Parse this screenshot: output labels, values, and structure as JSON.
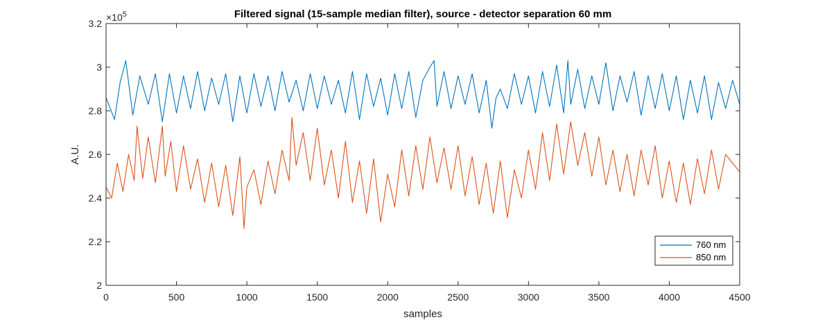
{
  "chart_data": {
    "type": "line",
    "title": "Filtered signal (15-sample median filter), source - detector separation 60 mm",
    "xlabel": "samples",
    "ylabel": "A.U.",
    "xlim": [
      0,
      4500
    ],
    "ylim": [
      200000,
      320000
    ],
    "x_ticks": [
      "0",
      "500",
      "1000",
      "1500",
      "2000",
      "2500",
      "3000",
      "3500",
      "4000",
      "4500"
    ],
    "y_ticks": [
      "2",
      "2.2",
      "2.4",
      "2.6",
      "2.8",
      "3",
      "3.2"
    ],
    "y_exponent": {
      "base": "×10",
      "power": "5"
    },
    "grid": false,
    "legend_position": "bottom-right",
    "series": [
      {
        "name": "760 nm",
        "color": "#0072BD",
        "x": [
          0,
          60,
          100,
          140,
          190,
          240,
          300,
          350,
          400,
          450,
          500,
          550,
          600,
          650,
          700,
          750,
          800,
          850,
          900,
          950,
          1000,
          1050,
          1100,
          1150,
          1200,
          1250,
          1300,
          1350,
          1400,
          1450,
          1500,
          1550,
          1600,
          1650,
          1700,
          1750,
          1800,
          1850,
          1900,
          1950,
          2000,
          2050,
          2100,
          2150,
          2200,
          2250,
          2300,
          2330,
          2350,
          2400,
          2450,
          2500,
          2550,
          2600,
          2650,
          2700,
          2740,
          2770,
          2800,
          2850,
          2900,
          2950,
          3000,
          3050,
          3100,
          3150,
          3200,
          3250,
          3280,
          3300,
          3350,
          3400,
          3450,
          3500,
          3550,
          3600,
          3650,
          3700,
          3750,
          3800,
          3850,
          3900,
          3950,
          4000,
          4050,
          4100,
          4150,
          4200,
          4250,
          4300,
          4350,
          4400,
          4450,
          4500
        ],
        "values": [
          286000,
          276000,
          293000,
          303000,
          278000,
          296000,
          283000,
          297000,
          275000,
          297000,
          279000,
          296000,
          281000,
          298000,
          280000,
          295000,
          283000,
          297000,
          275000,
          296000,
          279000,
          297000,
          282000,
          296000,
          280000,
          298000,
          284000,
          294000,
          280000,
          297000,
          281000,
          296000,
          283000,
          294000,
          279000,
          298000,
          276000,
          297000,
          282000,
          295000,
          278000,
          297000,
          281000,
          298000,
          277000,
          294000,
          300000,
          303000,
          282000,
          298000,
          281000,
          296000,
          283000,
          297000,
          279000,
          294000,
          272000,
          286000,
          290000,
          281000,
          297000,
          283000,
          296000,
          279000,
          298000,
          282000,
          301000,
          279000,
          303000,
          283000,
          299000,
          281000,
          296000,
          283000,
          302000,
          280000,
          296000,
          284000,
          298000,
          278000,
          296000,
          281000,
          297000,
          280000,
          296000,
          276000,
          294000,
          279000,
          296000,
          276000,
          293000,
          281000,
          294000,
          283000
        ]
      },
      {
        "name": "850 nm",
        "color": "#D95319",
        "x": [
          0,
          40,
          80,
          120,
          160,
          200,
          220,
          260,
          300,
          350,
          400,
          420,
          460,
          500,
          550,
          600,
          650,
          700,
          750,
          800,
          850,
          900,
          950,
          980,
          1000,
          1050,
          1100,
          1150,
          1200,
          1250,
          1300,
          1320,
          1350,
          1400,
          1450,
          1500,
          1550,
          1600,
          1650,
          1700,
          1750,
          1800,
          1850,
          1900,
          1950,
          2000,
          2050,
          2100,
          2150,
          2200,
          2250,
          2300,
          2350,
          2400,
          2450,
          2500,
          2550,
          2600,
          2650,
          2700,
          2750,
          2800,
          2850,
          2900,
          2950,
          3000,
          3050,
          3100,
          3150,
          3200,
          3250,
          3300,
          3350,
          3400,
          3450,
          3500,
          3550,
          3600,
          3650,
          3700,
          3750,
          3800,
          3850,
          3900,
          3950,
          4000,
          4050,
          4100,
          4150,
          4200,
          4250,
          4300,
          4350,
          4400,
          4450,
          4500
        ],
        "values": [
          245000,
          240000,
          256000,
          243000,
          260000,
          248000,
          273000,
          249000,
          268000,
          247000,
          273000,
          250000,
          266000,
          243000,
          264000,
          244000,
          258000,
          238000,
          256000,
          236000,
          255000,
          232000,
          259000,
          226000,
          245000,
          253000,
          237000,
          257000,
          242000,
          262000,
          248000,
          277000,
          255000,
          270000,
          248000,
          272000,
          246000,
          262000,
          240000,
          266000,
          238000,
          257000,
          233000,
          258000,
          229000,
          251000,
          236000,
          262000,
          241000,
          264000,
          244000,
          268000,
          247000,
          263000,
          244000,
          264000,
          241000,
          259000,
          237000,
          256000,
          233000,
          257000,
          231000,
          253000,
          240000,
          262000,
          244000,
          270000,
          248000,
          274000,
          251000,
          275000,
          255000,
          270000,
          250000,
          268000,
          246000,
          262000,
          243000,
          260000,
          241000,
          262000,
          246000,
          264000,
          240000,
          257000,
          238000,
          256000,
          237000,
          258000,
          242000,
          262000,
          244000,
          260000,
          256000,
          252000
        ]
      }
    ]
  }
}
